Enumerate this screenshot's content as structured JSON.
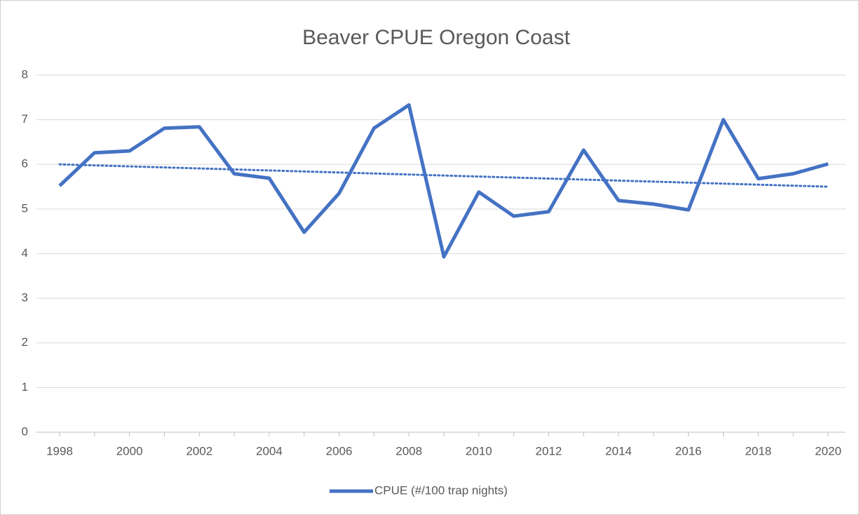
{
  "chart_data": {
    "type": "line",
    "title": "Beaver CPUE  Oregon Coast",
    "categories": [
      "1998",
      null,
      "2000",
      null,
      "2002",
      null,
      "2004",
      null,
      "2006",
      null,
      "2008",
      null,
      "2010",
      null,
      "2012",
      null,
      "2014",
      null,
      "2016",
      null,
      "2018",
      null,
      "2020"
    ],
    "series": [
      {
        "name": "CPUE (#/100 trap nights)",
        "color": "#4472c4",
        "values": [
          5.52,
          6.26,
          6.3,
          6.81,
          6.84,
          5.79,
          5.69,
          4.48,
          5.35,
          6.81,
          7.33,
          3.93,
          5.38,
          4.84,
          4.94,
          6.32,
          5.19,
          5.11,
          4.98,
          7.0,
          5.68,
          5.79,
          6.01
        ]
      }
    ],
    "trendline": {
      "style": "dotted",
      "color": "#4472c4",
      "values": [
        6.0,
        5.5
      ]
    },
    "ylim": [
      0,
      8
    ],
    "yticks": [
      0,
      1,
      2,
      3,
      4,
      5,
      6,
      7,
      8
    ],
    "grid": true,
    "legend": "bottom"
  }
}
